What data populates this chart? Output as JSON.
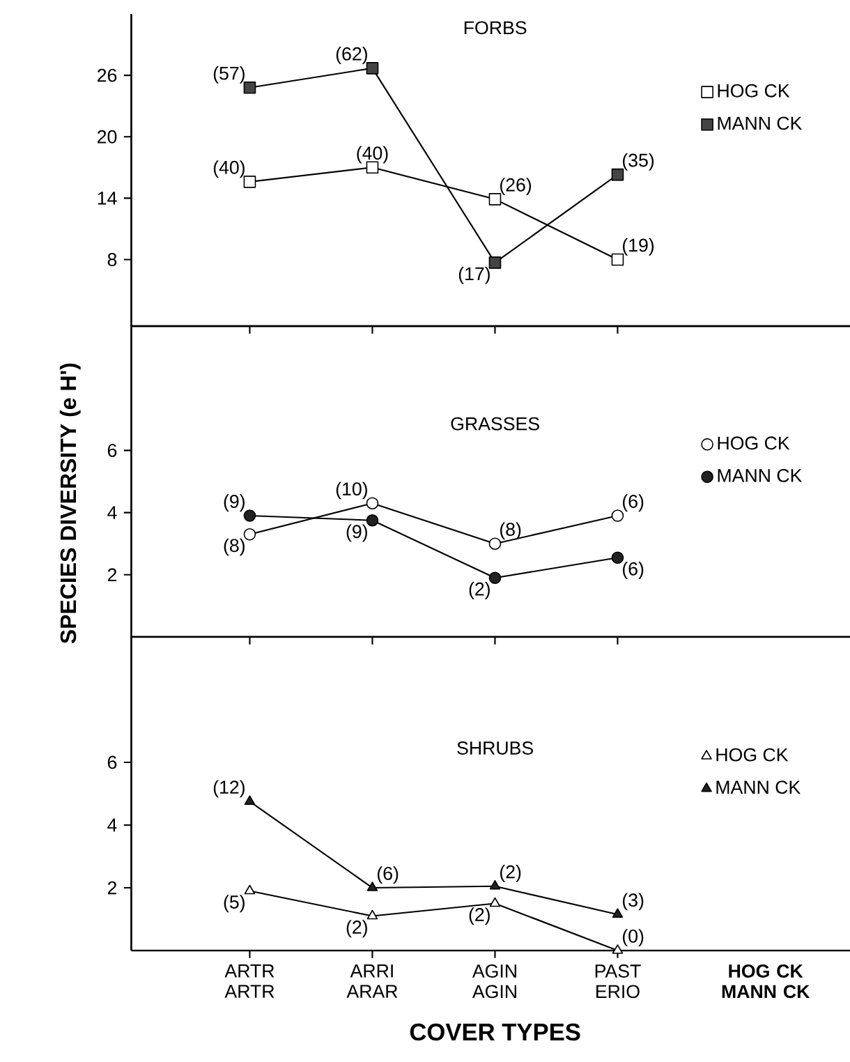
{
  "chart_data": [
    {
      "type": "line",
      "title": "FORBS",
      "categories": [
        "ARTR ARTR",
        "ARRI ARAR",
        "AGIN AGIN",
        "PAST ERIO"
      ],
      "ylim": [
        1.5,
        32
      ],
      "yticks": [
        8,
        14,
        20,
        26
      ],
      "marker": "square",
      "legend": "right",
      "tick_labels": "y",
      "series": [
        {
          "name": "HOG CK",
          "color": "#ffffff",
          "values": [
            15.6,
            17.0,
            13.9,
            8.0
          ]
        },
        {
          "name": "MANN CK",
          "color": "#444444",
          "values": [
            24.8,
            26.7,
            7.7,
            16.3
          ]
        }
      ],
      "annotations": [
        {
          "text": "(40)",
          "x": "ARTR ARTR",
          "y": 15.6
        },
        {
          "text": "(40)",
          "x": "ARRI ARAR",
          "y": 17.0
        },
        {
          "text": "(26)",
          "x": "AGIN AGIN",
          "y": 13.9
        },
        {
          "text": "(19)",
          "x": "PAST ERIO",
          "y": 8.0
        },
        {
          "text": "(57)",
          "x": "ARTR ARTR",
          "y": 24.8
        },
        {
          "text": "(62)",
          "x": "ARRI ARAR",
          "y": 26.7
        },
        {
          "text": "(17)",
          "x": "AGIN AGIN",
          "y": 7.7
        },
        {
          "text": "(35)",
          "x": "PAST ERIO",
          "y": 16.3
        }
      ]
    },
    {
      "type": "line",
      "title": "GRASSES",
      "ylabel": "SPECIES DIVERSITY  (e H')",
      "categories": [
        "ARTR ARTR",
        "ARRI ARAR",
        "AGIN AGIN",
        "PAST ERIO"
      ],
      "ylim": [
        0,
        10
      ],
      "yticks": [
        2,
        4,
        6
      ],
      "marker": "circle",
      "legend": "right",
      "tick_labels": "y",
      "series": [
        {
          "name": "HOG CK",
          "color": "#ffffff",
          "values": [
            3.3,
            4.3,
            3.0,
            3.9
          ]
        },
        {
          "name": "MANN CK",
          "color": "#222222",
          "values": [
            3.9,
            3.75,
            1.9,
            2.55
          ]
        }
      ],
      "annotations": [
        {
          "text": "(8)",
          "x": "ARTR ARTR",
          "y": 3.3
        },
        {
          "text": "(10)",
          "x": "ARRI ARAR",
          "y": 4.3
        },
        {
          "text": "(8)",
          "x": "AGIN AGIN",
          "y": 3.0
        },
        {
          "text": "(6)",
          "x": "PAST ERIO",
          "y": 3.9
        },
        {
          "text": "(9)",
          "x": "ARTR ARTR",
          "y": 3.9
        },
        {
          "text": "(9)",
          "x": "ARRI ARAR",
          "y": 3.75
        },
        {
          "text": "(2)",
          "x": "AGIN AGIN",
          "y": 1.9
        },
        {
          "text": "(6)",
          "x": "PAST ERIO",
          "y": 2.55
        }
      ]
    },
    {
      "type": "line",
      "title": "SHRUBS",
      "xlabel": "COVER TYPES",
      "categories": [
        "ARTR ARTR",
        "ARRI ARAR",
        "AGIN AGIN",
        "PAST ERIO"
      ],
      "ylim": [
        0,
        10
      ],
      "yticks": [
        2,
        4,
        6
      ],
      "marker": "triangle",
      "legend": "right",
      "series": [
        {
          "name": "HOG CK",
          "color": "#ffffff",
          "values": [
            1.9,
            1.1,
            1.5,
            0
          ]
        },
        {
          "name": "MANN CK",
          "color": "#222222",
          "values": [
            4.75,
            2.0,
            2.05,
            1.15
          ]
        }
      ],
      "annotations": [
        "HOG CK MANN CK",
        {
          "text": "(5)",
          "x": "ARTR ARTR",
          "y": 1.9
        },
        {
          "text": "(2)",
          "x": "ARRI ARAR",
          "y": 1.1
        },
        {
          "text": "(2)",
          "x": "AGIN AGIN",
          "y": 1.5
        },
        {
          "text": "(0)",
          "x": "PAST ERIO",
          "y": 0
        },
        {
          "text": "(12)",
          "x": "ARTR ARTR",
          "y": 4.75
        },
        {
          "text": "(6)",
          "x": "ARRI ARAR",
          "y": 2.0
        },
        {
          "text": "(2)",
          "x": "AGIN AGIN",
          "y": 2.05
        },
        {
          "text": "(3)",
          "x": "PAST ERIO",
          "y": 1.15
        }
      ]
    }
  ]
}
